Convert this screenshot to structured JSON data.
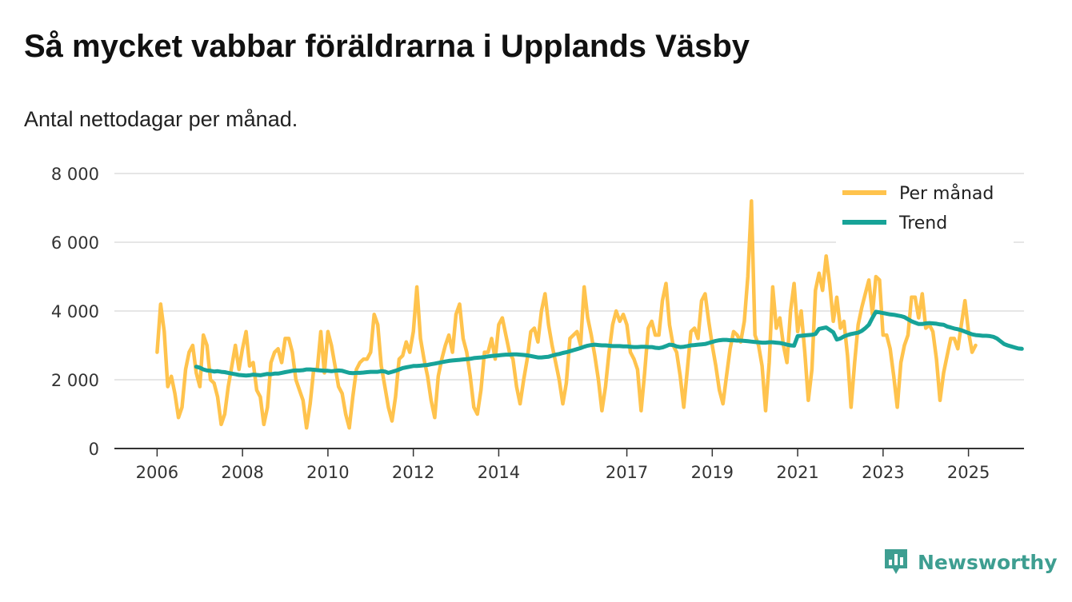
{
  "header": {
    "title": "Så mycket vabbar föräldrarna i Upplands Väsby",
    "subtitle": "Antal nettodagar per månad."
  },
  "brand": {
    "name": "Newsworthy"
  },
  "colors": {
    "monthly": "#ffc34d",
    "trend": "#17a398",
    "grid": "#dddddd",
    "axis": "#333333",
    "brand": "#3e9e91"
  },
  "chart_data": {
    "type": "line",
    "title": "Så mycket vabbar föräldrarna i Upplands Väsby",
    "subtitle": "Antal nettodagar per månad.",
    "xlabel": "",
    "ylabel": "",
    "x_unit": "year (decimal, monthly steps)",
    "xlim": [
      2005.0,
      2026.3
    ],
    "ylim": [
      0,
      8000
    ],
    "y_ticks": [
      0,
      2000,
      4000,
      6000,
      8000
    ],
    "y_tick_labels": [
      "0",
      "2 000",
      "4 000",
      "6 000",
      "8 000"
    ],
    "x_ticks": [
      2006,
      2008,
      2010,
      2012,
      2014,
      2017,
      2019,
      2021,
      2023,
      2025
    ],
    "x_tick_labels": [
      "2006",
      "2008",
      "2010",
      "2012",
      "2014",
      "2017",
      "2019",
      "2021",
      "2023",
      "2025"
    ],
    "grid": true,
    "legend_position": "top-right",
    "series": [
      {
        "name": "Per månad",
        "color": "#ffc34d",
        "x_start": 2006.0,
        "x_step": 0.0833333,
        "values": [
          2800,
          4200,
          3400,
          1800,
          2100,
          1600,
          900,
          1200,
          2300,
          2800,
          3000,
          2200,
          1800,
          3300,
          3000,
          2000,
          1900,
          1500,
          700,
          1000,
          1800,
          2400,
          3000,
          2300,
          2900,
          3400,
          2400,
          2500,
          1700,
          1500,
          700,
          1200,
          2500,
          2800,
          2900,
          2500,
          3200,
          3200,
          2800,
          2000,
          1700,
          1400,
          600,
          1300,
          2300,
          2300,
          3400,
          2200,
          3400,
          3000,
          2400,
          1800,
          1600,
          1000,
          600,
          1500,
          2300,
          2500,
          2600,
          2600,
          2800,
          3900,
          3600,
          2400,
          1800,
          1200,
          800,
          1500,
          2600,
          2700,
          3100,
          2800,
          3400,
          4700,
          3200,
          2600,
          2100,
          1400,
          900,
          2100,
          2600,
          3000,
          3300,
          2800,
          3900,
          4200,
          3200,
          2800,
          2100,
          1200,
          1000,
          1700,
          2800,
          2800,
          3200,
          2600,
          3600,
          3800,
          3300,
          2800,
          2600,
          1800,
          1300,
          2000,
          2600,
          3400,
          3500,
          3100,
          4000,
          4500,
          3600,
          3000,
          2500,
          2000,
          1300,
          1900,
          3200,
          3300,
          3400,
          3000,
          4700,
          3800,
          3300,
          2700,
          2000,
          1100,
          1800,
          2800,
          3600,
          4000,
          3700,
          3900,
          3600,
          2800,
          2600,
          2300,
          1100,
          2200,
          3500,
          3700,
          3300,
          3300,
          4300,
          4800,
          3600,
          3000,
          2800,
          2100,
          1200,
          2300,
          3400,
          3500,
          3200,
          4300,
          4500,
          3700,
          3000,
          2400,
          1700,
          1300,
          2100,
          2900,
          3400,
          3300,
          3100,
          3700,
          5000,
          7200,
          3300,
          3000,
          2400,
          1100,
          2500,
          4700,
          3500,
          3800,
          3000,
          2500,
          4000,
          4800,
          3400,
          4000,
          2800,
          1400,
          2300,
          4600,
          5100,
          4600,
          5600,
          4800,
          3700,
          4400,
          3500,
          3700,
          2700,
          1200,
          2500,
          3600,
          4100,
          4500,
          4900,
          3900,
          5000,
          4900,
          3300,
          3300,
          2900,
          2100,
          1200,
          2500,
          3000,
          3300,
          4400,
          4400,
          3800,
          4500,
          3500,
          3600,
          3400,
          2600,
          1400,
          2200,
          2700,
          3200,
          3200,
          2900,
          3600,
          4300,
          3400,
          2800,
          3000
        ]
      },
      {
        "name": "Trend",
        "color": "#17a398",
        "x_start": 2006.9166667,
        "x_step": 0.0833333,
        "values": [
          2380,
          2350,
          2300,
          2270,
          2260,
          2240,
          2250,
          2230,
          2220,
          2200,
          2180,
          2160,
          2140,
          2130,
          2120,
          2130,
          2150,
          2140,
          2130,
          2150,
          2170,
          2160,
          2180,
          2180,
          2200,
          2220,
          2240,
          2260,
          2270,
          2270,
          2280,
          2300,
          2300,
          2290,
          2280,
          2270,
          2260,
          2260,
          2250,
          2260,
          2270,
          2260,
          2230,
          2200,
          2190,
          2200,
          2200,
          2210,
          2220,
          2230,
          2230,
          2230,
          2250,
          2240,
          2200,
          2230,
          2260,
          2300,
          2340,
          2360,
          2380,
          2400,
          2400,
          2410,
          2420,
          2430,
          2450,
          2470,
          2490,
          2510,
          2530,
          2550,
          2560,
          2570,
          2580,
          2590,
          2600,
          2610,
          2630,
          2640,
          2650,
          2660,
          2680,
          2690,
          2700,
          2710,
          2720,
          2730,
          2730,
          2740,
          2740,
          2730,
          2720,
          2710,
          2690,
          2670,
          2650,
          2650,
          2660,
          2670,
          2700,
          2730,
          2750,
          2780,
          2800,
          2830,
          2860,
          2890,
          2920,
          2960,
          2990,
          3010,
          3020,
          3010,
          3000,
          3000,
          2990,
          2980,
          2980,
          2980,
          2970,
          2970,
          2960,
          2950,
          2950,
          2960,
          2960,
          2950,
          2950,
          2930,
          2920,
          2940,
          2980,
          3020,
          3010,
          2970,
          2950,
          2960,
          2980,
          3000,
          3010,
          3020,
          3030,
          3040,
          3070,
          3100,
          3130,
          3150,
          3160,
          3160,
          3150,
          3150,
          3140,
          3140,
          3130,
          3120,
          3110,
          3100,
          3090,
          3080,
          3080,
          3090,
          3090,
          3080,
          3070,
          3050,
          3020,
          3000,
          2990,
          3270,
          3280,
          3290,
          3300,
          3310,
          3330,
          3480,
          3500,
          3520,
          3450,
          3380,
          3170,
          3200,
          3260,
          3300,
          3330,
          3350,
          3370,
          3420,
          3500,
          3600,
          3800,
          3980,
          3960,
          3940,
          3920,
          3900,
          3890,
          3870,
          3850,
          3820,
          3760,
          3700,
          3660,
          3620,
          3620,
          3640,
          3650,
          3640,
          3630,
          3610,
          3600,
          3550,
          3520,
          3490,
          3470,
          3440,
          3400,
          3360,
          3320,
          3300,
          3290,
          3280,
          3280,
          3270,
          3250,
          3200,
          3120,
          3040,
          3000,
          2970,
          2940,
          2910,
          2900
        ]
      }
    ]
  }
}
